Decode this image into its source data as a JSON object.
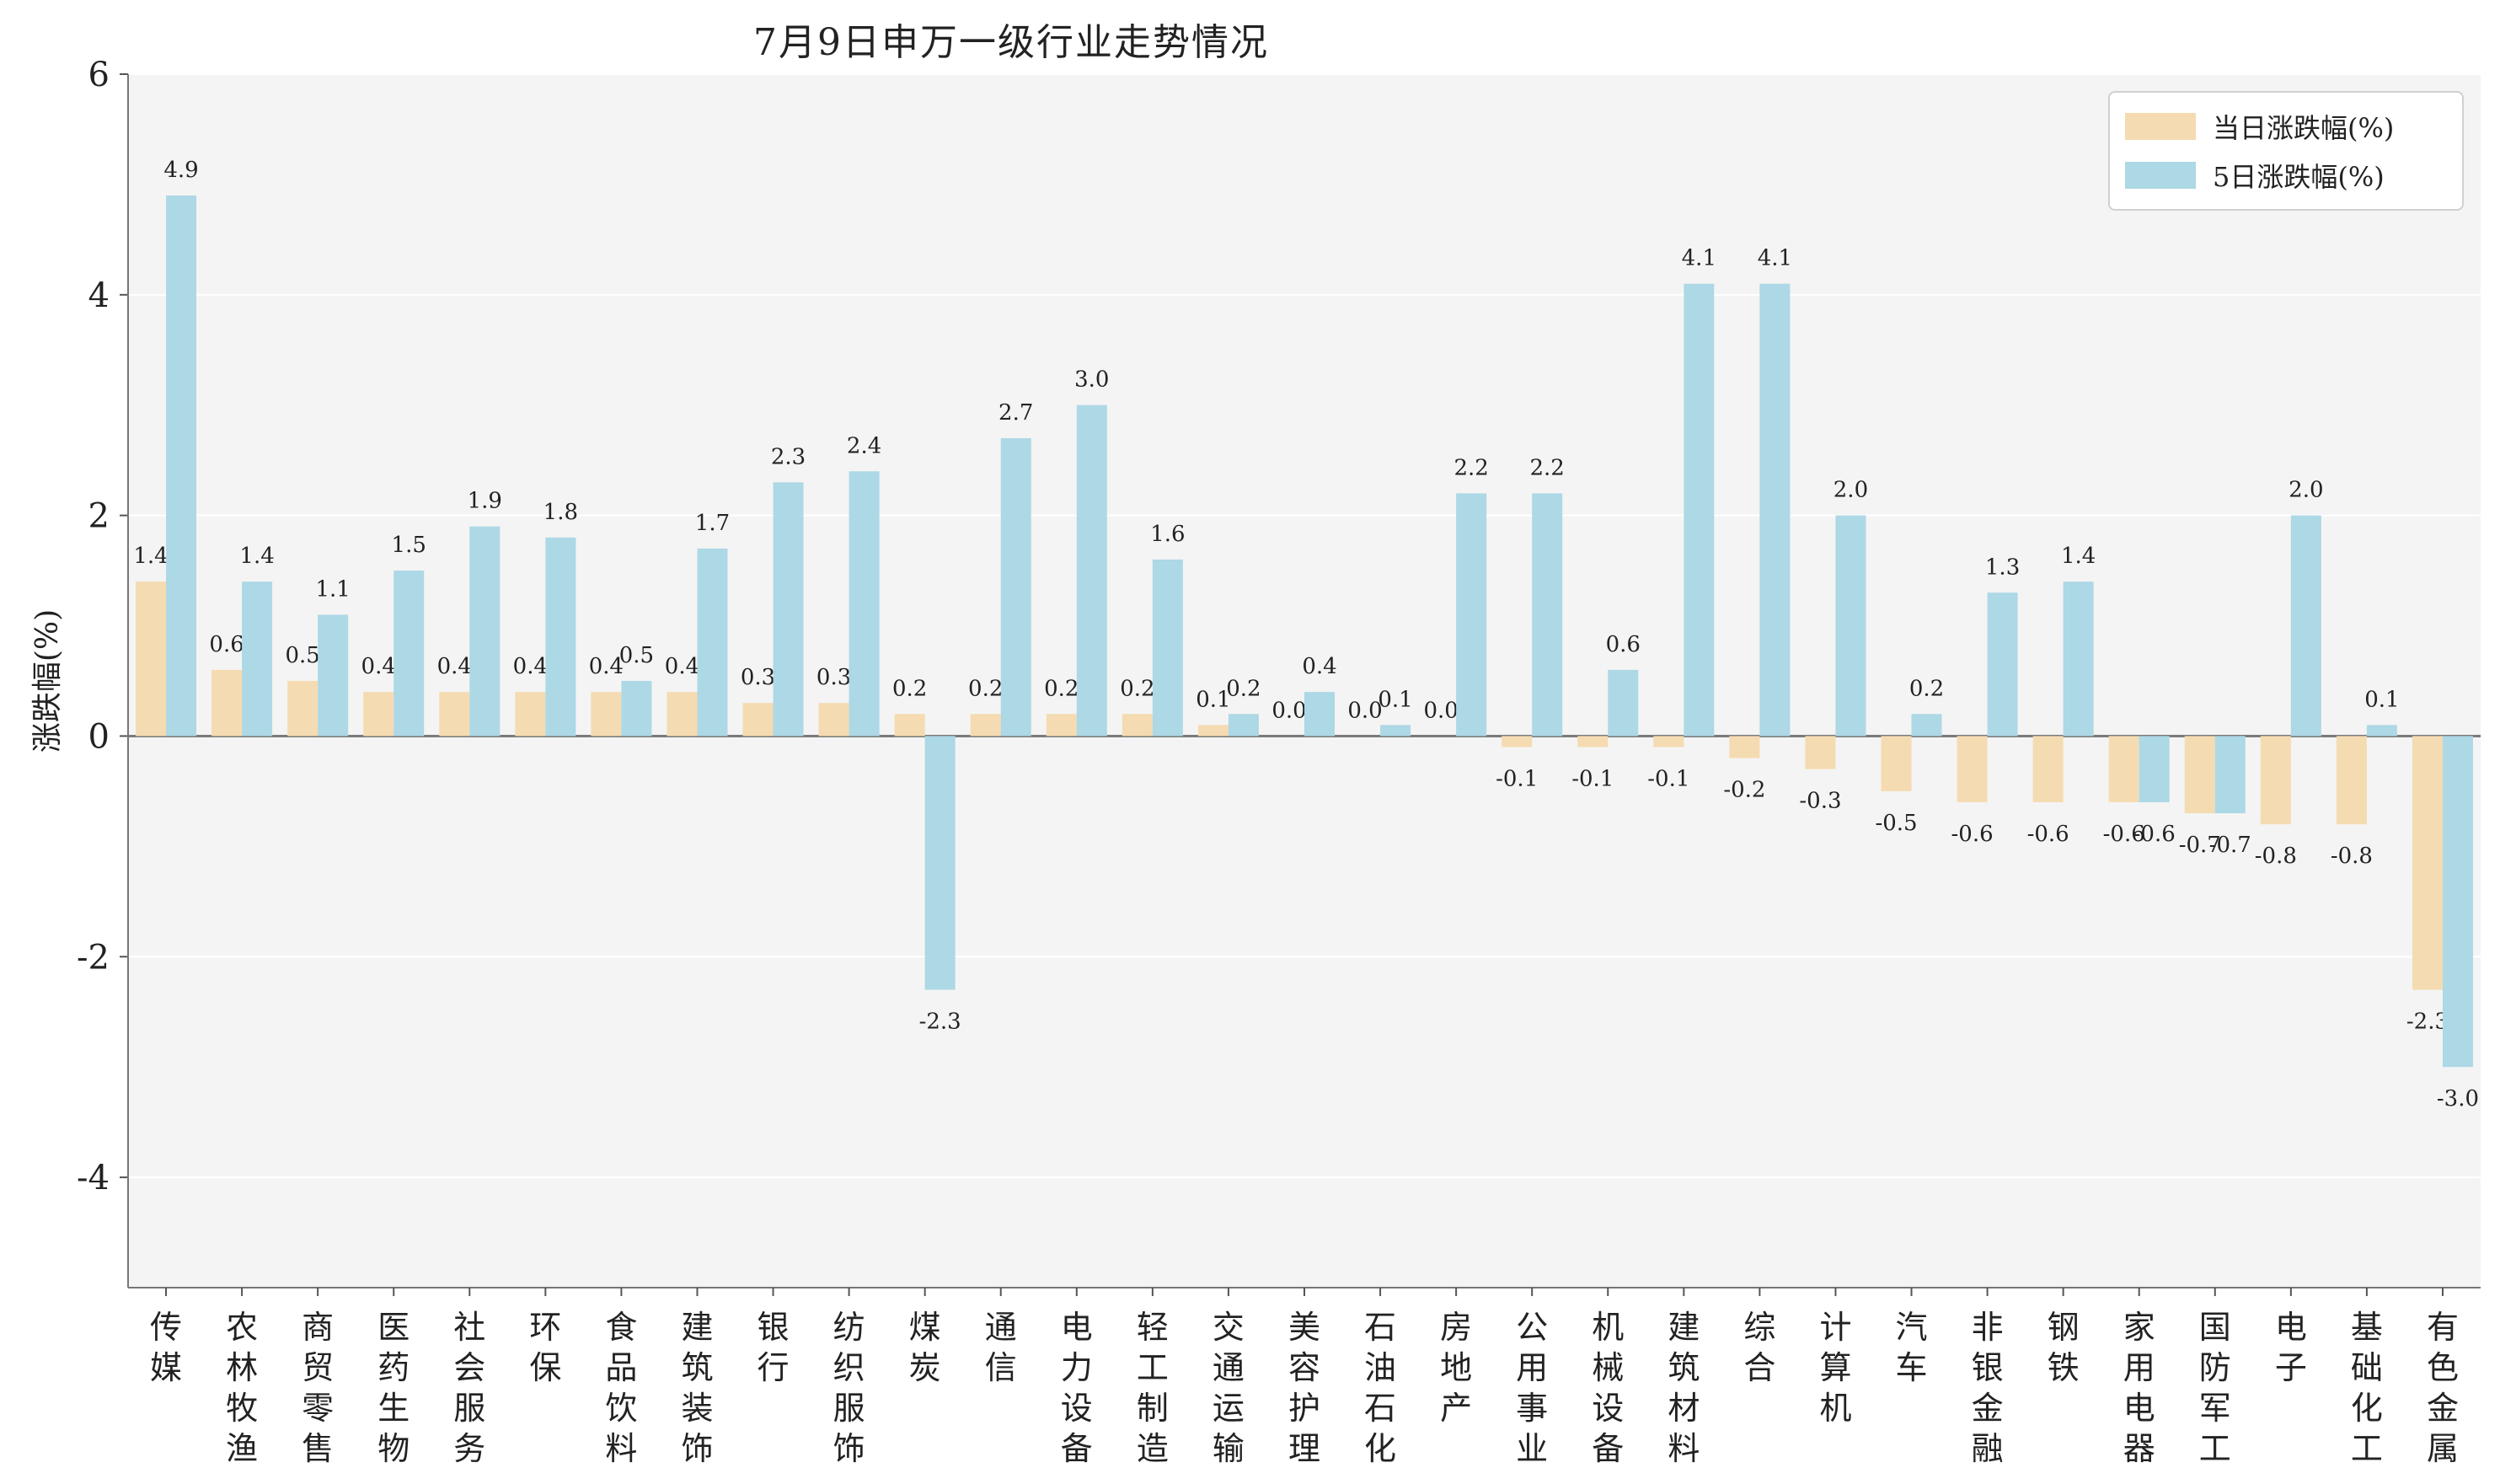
{
  "chart_data": {
    "type": "bar",
    "title": "7月9日申万一级行业走势情况",
    "ylabel": "涨跌幅(%)",
    "xlabel": "",
    "ylim": [
      -5,
      6
    ],
    "yticks": [
      6,
      4,
      2,
      0,
      -2,
      -4
    ],
    "grid": true,
    "legend_position": "top-right",
    "categories": [
      "传媒",
      "农林牧渔",
      "商贸零售",
      "医药生物",
      "社会服务",
      "环保",
      "食品饮料",
      "建筑装饰",
      "银行",
      "纺织服饰",
      "煤炭",
      "通信",
      "电力设备",
      "轻工制造",
      "交通运输",
      "美容护理",
      "石油石化",
      "房地产",
      "公用事业",
      "机械设备",
      "建筑材料",
      "综合",
      "计算机",
      "汽车",
      "非银金融",
      "钢铁",
      "家用电器",
      "国防军工",
      "电子",
      "基础化工",
      "有色金属"
    ],
    "series": [
      {
        "name": "当日涨跌幅(%)",
        "color": "#f5dbb1",
        "values": [
          1.4,
          0.6,
          0.5,
          0.4,
          0.4,
          0.4,
          0.4,
          0.4,
          0.3,
          0.3,
          0.2,
          0.2,
          0.2,
          0.2,
          0.1,
          0.0,
          0.0,
          0.0,
          -0.1,
          -0.1,
          -0.1,
          -0.2,
          -0.3,
          -0.5,
          -0.6,
          -0.6,
          -0.6,
          -0.7,
          -0.8,
          -0.8,
          -2.3
        ]
      },
      {
        "name": "5日涨跌幅(%)",
        "color": "#add8e6",
        "values": [
          4.9,
          1.4,
          1.1,
          1.5,
          1.9,
          1.8,
          0.5,
          1.7,
          2.3,
          2.4,
          -2.3,
          2.7,
          3.0,
          1.6,
          0.2,
          0.4,
          0.1,
          2.2,
          2.2,
          0.6,
          4.1,
          4.1,
          2.0,
          0.2,
          1.3,
          1.4,
          -0.6,
          -0.7,
          2.0,
          0.1,
          -3.0
        ]
      }
    ]
  }
}
